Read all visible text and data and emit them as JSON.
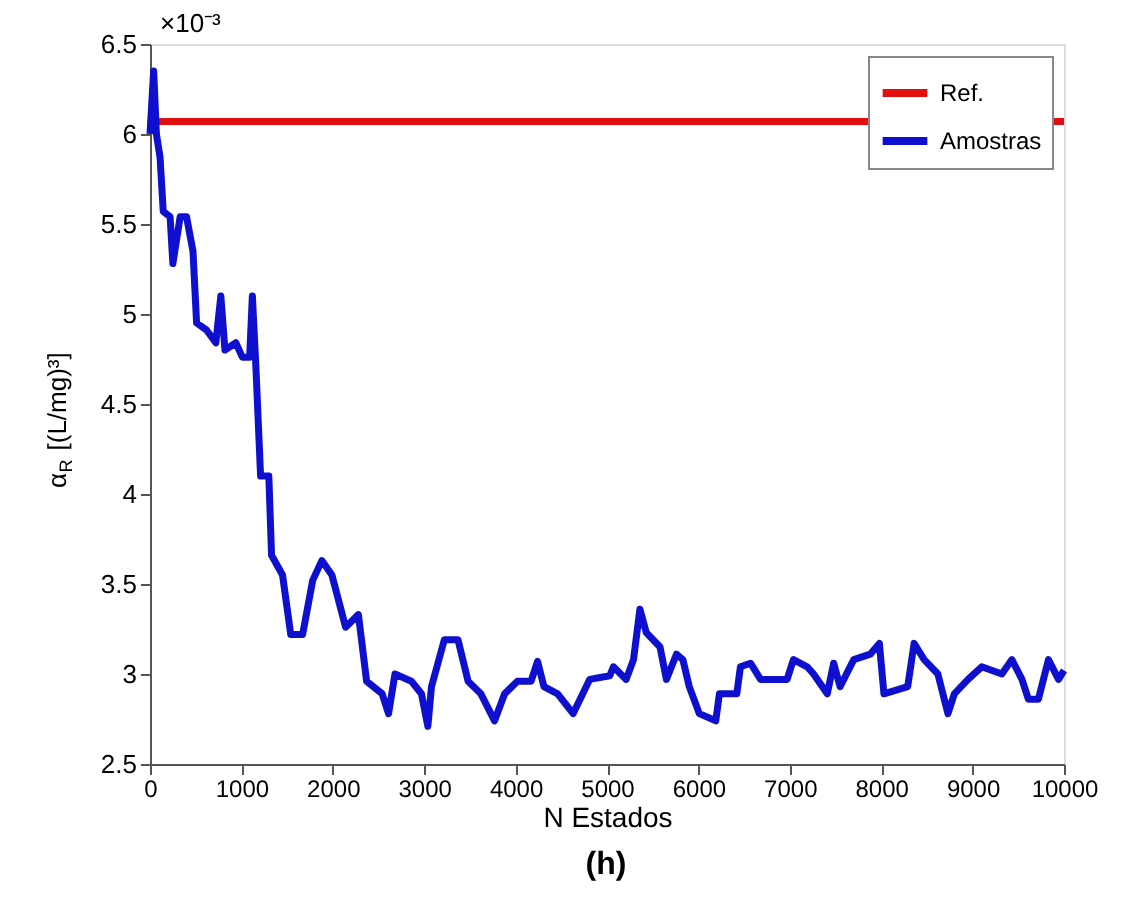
{
  "chart_data": {
    "type": "line",
    "xlabel": "N Estados",
    "ylabel": "α$_{R}$ [(L/mg)³]",
    "xlim": [
      0,
      10000
    ],
    "xticks": [
      0,
      1000,
      2000,
      3000,
      4000,
      5000,
      6000,
      7000,
      8000,
      9000,
      10000
    ],
    "ylim": [
      2.5,
      6.5
    ],
    "yticks": [
      2.5,
      3,
      3.5,
      4,
      4.5,
      5,
      5.5,
      6,
      6.5
    ],
    "grid": false,
    "legend": "top right",
    "marker": "none",
    "line_style": "solid",
    "annotations": [
      "×10⁻³",
      "(h)"
    ],
    "series": [
      {
        "name": "Ref.",
        "color": "#e01010",
        "x": [
          0,
          10000
        ],
        "values": [
          6.07,
          6.07
        ]
      },
      {
        "name": "Amostras",
        "color": "#0f0fd0",
        "x": [
          0,
          40,
          70,
          110,
          145,
          220,
          250,
          330,
          400,
          470,
          510,
          620,
          720,
          775,
          820,
          940,
          1010,
          1090,
          1120,
          1160,
          1210,
          1300,
          1330,
          1450,
          1540,
          1670,
          1780,
          1880,
          1990,
          2140,
          2280,
          2370,
          2540,
          2610,
          2680,
          2860,
          2970,
          3040,
          3080,
          3220,
          3370,
          3480,
          3620,
          3770,
          3880,
          4020,
          4170,
          4240,
          4310,
          4460,
          4630,
          4810,
          5030,
          5070,
          5210,
          5290,
          5360,
          5430,
          5580,
          5650,
          5760,
          5830,
          5900,
          6010,
          6190,
          6230,
          6420,
          6460,
          6570,
          6680,
          6970,
          7040,
          7190,
          7260,
          7410,
          7480,
          7550,
          7700,
          7880,
          7980,
          8030,
          8290,
          8360,
          8470,
          8620,
          8730,
          8800,
          8950,
          9100,
          9320,
          9430,
          9540,
          9610,
          9720,
          9830,
          9940,
          10000
        ],
        "values": [
          6.0,
          6.35,
          6.0,
          5.87,
          5.57,
          5.54,
          5.28,
          5.54,
          5.54,
          5.35,
          4.95,
          4.91,
          4.84,
          5.1,
          4.8,
          4.84,
          4.76,
          4.76,
          5.1,
          4.69,
          4.1,
          4.1,
          3.66,
          3.55,
          3.22,
          3.22,
          3.52,
          3.63,
          3.55,
          3.26,
          3.33,
          2.96,
          2.89,
          2.78,
          3.0,
          2.96,
          2.89,
          2.71,
          2.93,
          3.19,
          3.19,
          2.96,
          2.89,
          2.74,
          2.89,
          2.96,
          2.96,
          3.07,
          2.93,
          2.89,
          2.78,
          2.97,
          2.99,
          3.04,
          2.97,
          3.08,
          3.36,
          3.23,
          3.15,
          2.97,
          3.11,
          3.08,
          2.93,
          2.78,
          2.74,
          2.89,
          2.89,
          3.04,
          3.06,
          2.97,
          2.97,
          3.08,
          3.04,
          3.0,
          2.89,
          3.06,
          2.93,
          3.08,
          3.11,
          3.17,
          2.89,
          2.93,
          3.17,
          3.08,
          3.0,
          2.78,
          2.89,
          2.97,
          3.04,
          3.0,
          3.08,
          2.97,
          2.86,
          2.86,
          3.08,
          2.97,
          3.02
        ]
      }
    ]
  }
}
